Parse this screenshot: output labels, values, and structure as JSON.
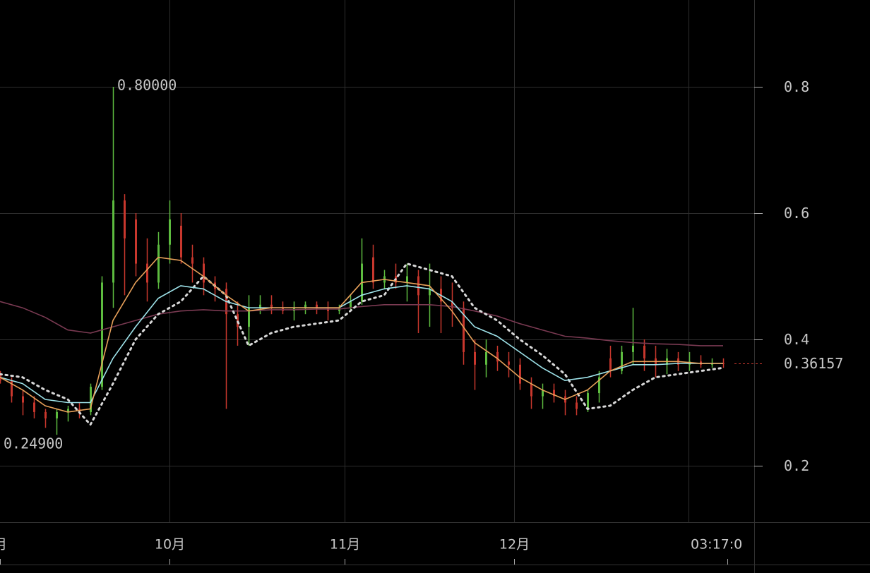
{
  "chart_data": {
    "type": "candlestick",
    "xlim": [
      0,
      133.5
    ],
    "ylim": [
      0.1106,
      0.9374
    ],
    "yticks": [
      0.2,
      0.4,
      0.6,
      0.8
    ],
    "xticks": [
      {
        "value": 0,
        "label": "月"
      },
      {
        "value": 30,
        "label": "10月"
      },
      {
        "value": 61,
        "label": "11月"
      },
      {
        "value": 91,
        "label": "12月"
      },
      {
        "value": 128.75,
        "label": "03:17:0"
      }
    ],
    "grid": true,
    "up_color": "#5dbb3f",
    "down_color": "#c8372d",
    "candles": {
      "x": [
        0,
        2,
        4,
        6,
        8,
        10,
        12,
        14,
        16,
        18,
        20,
        22,
        24,
        26,
        28,
        30,
        32,
        34,
        36,
        38,
        40,
        42,
        44,
        46,
        48,
        50,
        52,
        54,
        56,
        58,
        60,
        62,
        64,
        66,
        68,
        70,
        72,
        74,
        76,
        78,
        80,
        82,
        84,
        86,
        88,
        90,
        92,
        94,
        96,
        98,
        100,
        102,
        104,
        106,
        108,
        110,
        112,
        114,
        116,
        118,
        120,
        122,
        124,
        126,
        128
      ],
      "open": [
        0.345,
        0.335,
        0.31,
        0.3,
        0.285,
        0.275,
        0.285,
        0.29,
        0.285,
        0.325,
        0.49,
        0.62,
        0.59,
        0.52,
        0.49,
        0.55,
        0.58,
        0.53,
        0.52,
        0.49,
        0.48,
        0.44,
        0.42,
        0.45,
        0.455,
        0.45,
        0.445,
        0.45,
        0.455,
        0.45,
        0.445,
        0.45,
        0.46,
        0.53,
        0.49,
        0.5,
        0.49,
        0.5,
        0.47,
        0.48,
        0.46,
        0.45,
        0.38,
        0.36,
        0.38,
        0.365,
        0.36,
        0.33,
        0.31,
        0.32,
        0.31,
        0.3,
        0.29,
        0.315,
        0.37,
        0.35,
        0.38,
        0.39,
        0.37,
        0.36,
        0.37,
        0.36,
        0.365,
        0.36,
        0.362
      ],
      "high": [
        0.35,
        0.34,
        0.32,
        0.31,
        0.29,
        0.29,
        0.295,
        0.3,
        0.33,
        0.5,
        0.8,
        0.63,
        0.6,
        0.56,
        0.57,
        0.62,
        0.6,
        0.55,
        0.53,
        0.5,
        0.49,
        0.46,
        0.47,
        0.47,
        0.47,
        0.46,
        0.46,
        0.46,
        0.46,
        0.46,
        0.455,
        0.47,
        0.56,
        0.55,
        0.51,
        0.52,
        0.52,
        0.51,
        0.52,
        0.5,
        0.49,
        0.46,
        0.4,
        0.4,
        0.39,
        0.38,
        0.37,
        0.34,
        0.33,
        0.33,
        0.32,
        0.31,
        0.32,
        0.35,
        0.39,
        0.39,
        0.45,
        0.4,
        0.39,
        0.385,
        0.38,
        0.38,
        0.375,
        0.37,
        0.37
      ],
      "low": [
        0.33,
        0.3,
        0.28,
        0.275,
        0.26,
        0.249,
        0.27,
        0.275,
        0.28,
        0.32,
        0.45,
        0.47,
        0.5,
        0.46,
        0.48,
        0.52,
        0.52,
        0.49,
        0.47,
        0.46,
        0.29,
        0.39,
        0.39,
        0.44,
        0.44,
        0.44,
        0.43,
        0.44,
        0.44,
        0.43,
        0.44,
        0.445,
        0.455,
        0.48,
        0.48,
        0.48,
        0.46,
        0.41,
        0.42,
        0.41,
        0.42,
        0.36,
        0.32,
        0.34,
        0.35,
        0.34,
        0.32,
        0.29,
        0.29,
        0.3,
        0.28,
        0.28,
        0.285,
        0.3,
        0.34,
        0.345,
        0.36,
        0.35,
        0.34,
        0.345,
        0.35,
        0.35,
        0.355,
        0.355,
        0.355
      ],
      "close": [
        0.335,
        0.31,
        0.3,
        0.285,
        0.275,
        0.285,
        0.29,
        0.285,
        0.325,
        0.49,
        0.62,
        0.56,
        0.52,
        0.49,
        0.55,
        0.59,
        0.53,
        0.52,
        0.49,
        0.48,
        0.44,
        0.42,
        0.45,
        0.455,
        0.45,
        0.445,
        0.45,
        0.455,
        0.45,
        0.445,
        0.45,
        0.46,
        0.52,
        0.49,
        0.5,
        0.49,
        0.5,
        0.47,
        0.48,
        0.46,
        0.45,
        0.38,
        0.36,
        0.38,
        0.365,
        0.36,
        0.33,
        0.31,
        0.32,
        0.31,
        0.3,
        0.29,
        0.315,
        0.34,
        0.35,
        0.38,
        0.39,
        0.37,
        0.36,
        0.37,
        0.36,
        0.365,
        0.36,
        0.362,
        0.36157
      ]
    },
    "line_x": [
      0,
      4,
      8,
      12,
      16,
      20,
      24,
      28,
      32,
      36,
      40,
      44,
      48,
      52,
      56,
      60,
      64,
      68,
      72,
      76,
      80,
      84,
      88,
      92,
      96,
      100,
      104,
      108,
      112,
      116,
      120,
      124,
      128
    ],
    "lines": [
      {
        "color": "#7a3a52",
        "values": [
          0.46,
          0.45,
          0.435,
          0.415,
          0.41,
          0.42,
          0.43,
          0.44,
          0.445,
          0.447,
          0.445,
          0.445,
          0.447,
          0.447,
          0.448,
          0.448,
          0.452,
          0.455,
          0.455,
          0.455,
          0.452,
          0.445,
          0.437,
          0.425,
          0.415,
          0.405,
          0.402,
          0.398,
          0.395,
          0.393,
          0.392,
          0.39,
          0.39
        ]
      },
      {
        "color": "#d8d8d8",
        "dotted": true,
        "values": [
          0.345,
          0.34,
          0.32,
          0.305,
          0.265,
          0.33,
          0.4,
          0.44,
          0.46,
          0.5,
          0.47,
          0.39,
          0.41,
          0.42,
          0.425,
          0.43,
          0.46,
          0.47,
          0.52,
          0.51,
          0.5,
          0.45,
          0.43,
          0.4,
          0.375,
          0.345,
          0.29,
          0.295,
          0.32,
          0.34,
          0.345,
          0.35,
          0.355
        ]
      },
      {
        "color": "#9ee3ea",
        "values": [
          0.34,
          0.33,
          0.305,
          0.3,
          0.3,
          0.37,
          0.42,
          0.465,
          0.485,
          0.48,
          0.46,
          0.45,
          0.45,
          0.45,
          0.45,
          0.45,
          0.47,
          0.48,
          0.485,
          0.48,
          0.46,
          0.42,
          0.405,
          0.38,
          0.355,
          0.335,
          0.34,
          0.35,
          0.36,
          0.36,
          0.362,
          0.362,
          0.362
        ]
      },
      {
        "color": "#e8a15a",
        "values": [
          0.34,
          0.32,
          0.295,
          0.285,
          0.29,
          0.43,
          0.49,
          0.53,
          0.525,
          0.5,
          0.47,
          0.445,
          0.45,
          0.45,
          0.45,
          0.45,
          0.49,
          0.495,
          0.49,
          0.485,
          0.445,
          0.395,
          0.37,
          0.34,
          0.32,
          0.305,
          0.32,
          0.35,
          0.365,
          0.365,
          0.365,
          0.362,
          0.362
        ]
      }
    ],
    "annotations": [
      {
        "x": 20,
        "value": 0.8,
        "label": "0.80000",
        "side": "right"
      },
      {
        "x": 10,
        "value": 0.249,
        "label": "0.24900",
        "side": "below"
      }
    ]
  }
}
